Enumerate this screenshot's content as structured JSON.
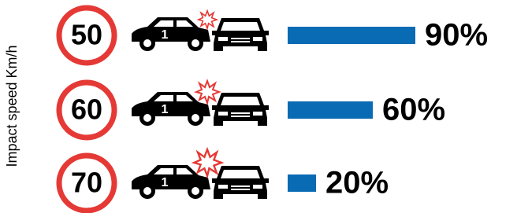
{
  "chart_data": {
    "type": "bar",
    "orientation": "horizontal",
    "y_label": "Impact speed Km/h",
    "categories": [
      "50",
      "60",
      "70"
    ],
    "values": [
      90,
      60,
      20
    ],
    "value_labels": [
      "90%",
      "60%",
      "20%"
    ],
    "car_number": "1",
    "color": "#0a6bb5"
  }
}
